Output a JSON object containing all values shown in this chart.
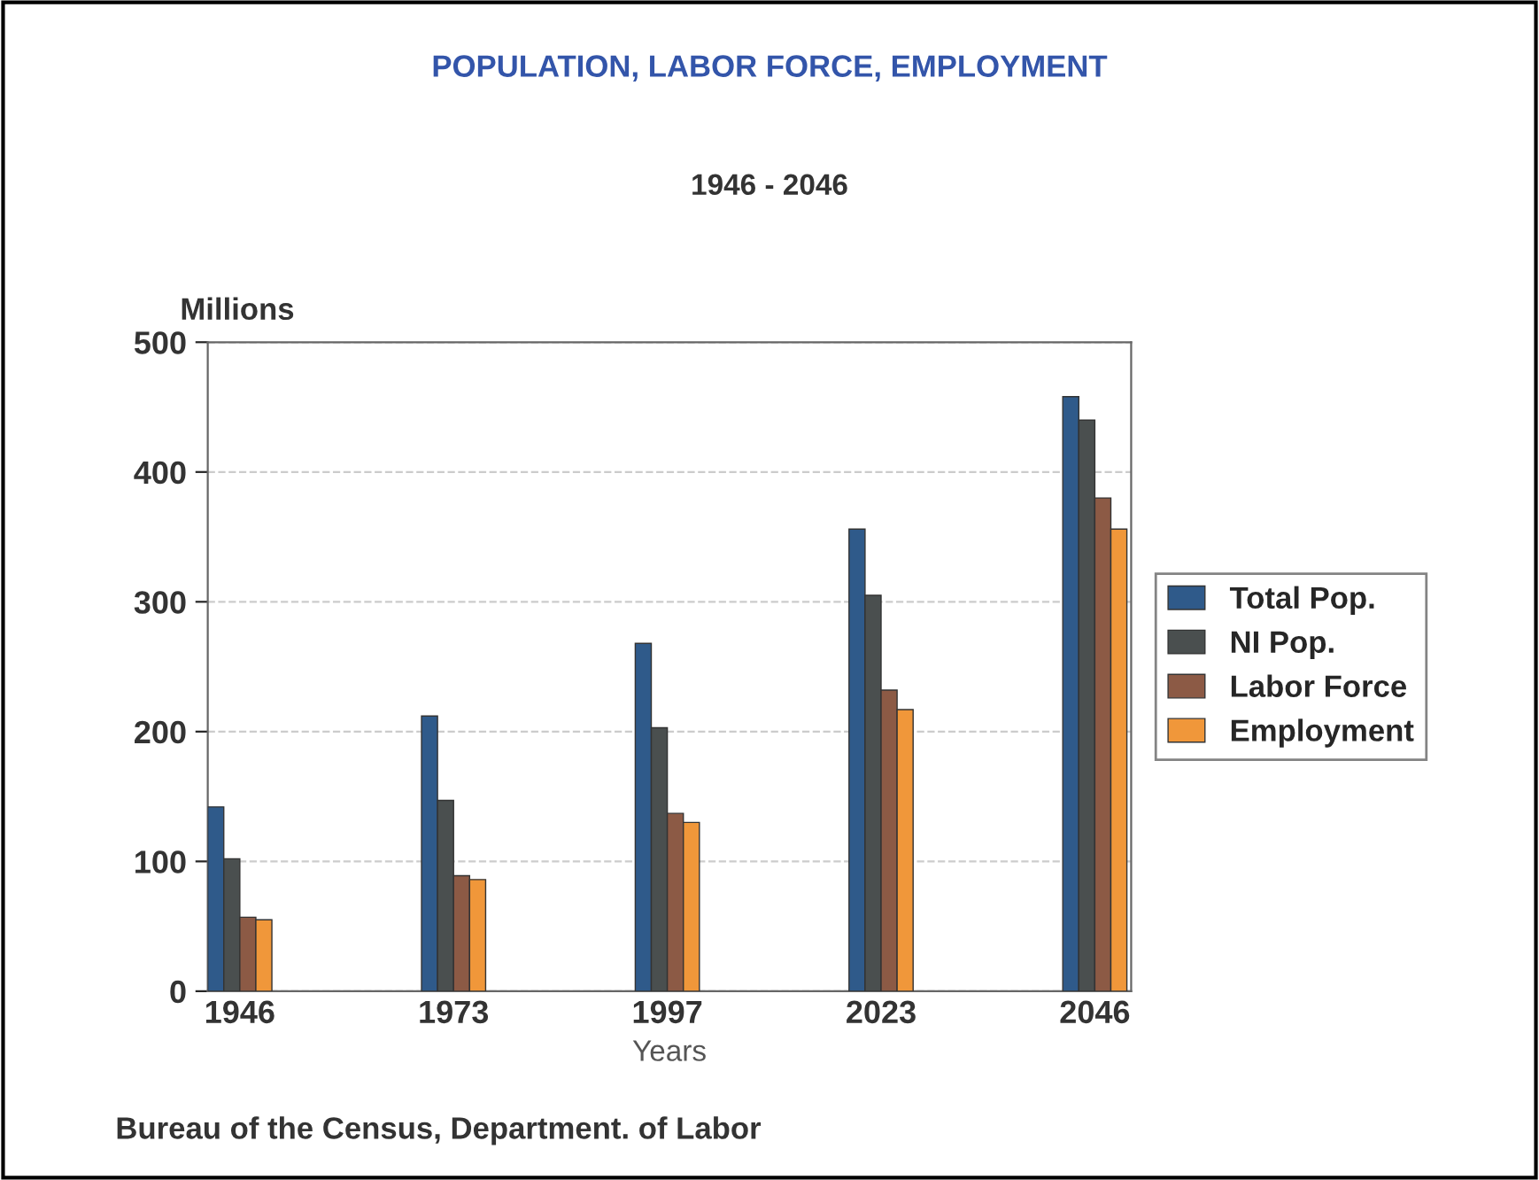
{
  "chart_data": {
    "type": "bar",
    "title": "POPULATION, LABOR FORCE, EMPLOYMENT",
    "subtitle": "1946 - 2046",
    "xlabel": "Years",
    "ylabel": "Millions",
    "annotations": [
      "Bureau of the Census, Department. of Labor"
    ],
    "categories": [
      "1946",
      "1973",
      "1997",
      "2023",
      "2046"
    ],
    "series": [
      {
        "name": "Total Pop.",
        "color": "#2f5a8a",
        "values": [
          142,
          212,
          268,
          356,
          458
        ]
      },
      {
        "name": "NI Pop.",
        "color": "#4a4f4f",
        "values": [
          102,
          147,
          203,
          305,
          440
        ]
      },
      {
        "name": "Labor Force",
        "color": "#8c5a45",
        "values": [
          57,
          89,
          137,
          232,
          380
        ]
      },
      {
        "name": "Employment",
        "color": "#f0973a",
        "values": [
          55,
          86,
          130,
          217,
          356
        ]
      }
    ],
    "ylim": [
      0,
      500
    ],
    "yticks": [
      0,
      100,
      200,
      300,
      400,
      500
    ],
    "grid": "y",
    "legend": "right"
  }
}
